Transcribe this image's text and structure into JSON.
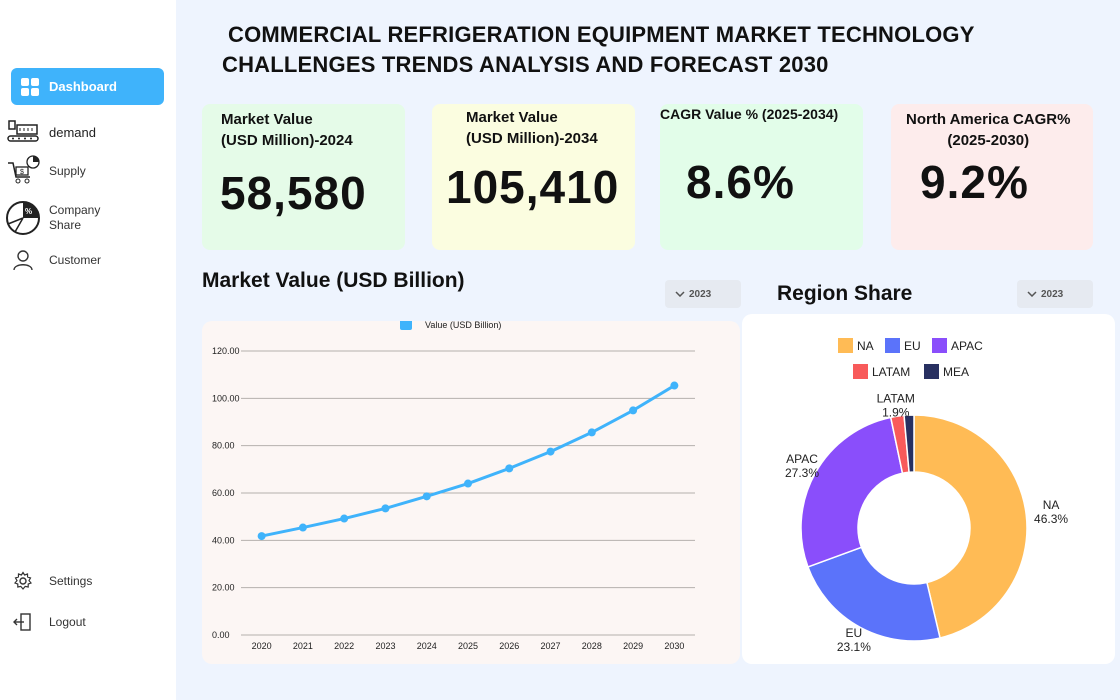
{
  "sidebar": {
    "items": [
      {
        "label": "Dashboard",
        "icon": "dashboard-icon"
      },
      {
        "label": "demand",
        "icon": "factory-icon"
      },
      {
        "label": "Supply",
        "icon": "supply-cart-icon"
      },
      {
        "label": "Company",
        "label2": "Share",
        "icon": "pie-percent-icon"
      },
      {
        "label": "Customer",
        "icon": "user-icon"
      }
    ],
    "settings_label": "Settings",
    "logout_label": "Logout"
  },
  "header": {
    "title_line1": "COMMERCIAL REFRIGERATION EQUIPMENT MARKET TECHNOLOGY",
    "title_line2": "CHALLENGES TRENDS ANALYSIS AND FORECAST 2030"
  },
  "cards": [
    {
      "label1": "Market Value",
      "label2": "(USD Million)-2024",
      "value": "58,580",
      "color": "#e5fbe8"
    },
    {
      "label1": "Market Value",
      "label2": "(USD Million)-2034",
      "value": "105,410",
      "color": "#fbfde0"
    },
    {
      "label1": "CAGR  Value % (2025-2034)",
      "label2": "",
      "value": "8.6%",
      "color": "#e2fde9"
    },
    {
      "label1": "North America CAGR%",
      "label2": "(2025-2030)",
      "value": "9.2%",
      "color": "#fdecec"
    }
  ],
  "line_section": {
    "title": "Market Value (USD Billion)",
    "dropdown": "2023"
  },
  "pie_section": {
    "title": "Region Share",
    "dropdown": "2023"
  },
  "chart_data": [
    {
      "type": "line",
      "title": "Market Value (USD Billion)",
      "x": [
        "2020",
        "2021",
        "2022",
        "2023",
        "2024",
        "2025",
        "2026",
        "2027",
        "2028",
        "2029",
        "2030"
      ],
      "series": [
        {
          "name": "Value (USD Billion)",
          "values": [
            41.8,
            45.4,
            49.2,
            53.5,
            58.6,
            64.0,
            70.4,
            77.5,
            85.6,
            94.9,
            105.4
          ],
          "color": "#3fb3fb"
        }
      ],
      "yticks": [
        "0.00",
        "20.00",
        "40.00",
        "60.00",
        "80.00",
        "100.00",
        "120.00"
      ],
      "ylim": [
        0,
        120
      ],
      "grid": true,
      "legend": "top"
    },
    {
      "type": "pie",
      "title": "Region Share",
      "donut": true,
      "slices": [
        {
          "label": "NA",
          "value": 46.3,
          "display": "46.3%",
          "color": "#ffbb55"
        },
        {
          "label": "EU",
          "value": 23.1,
          "display": "23.1%",
          "color": "#5b73fa"
        },
        {
          "label": "APAC",
          "value": 27.3,
          "display": "27.3%",
          "color": "#8a4efb"
        },
        {
          "label": "LATAM",
          "value": 1.9,
          "display": "1.9%",
          "color": "#f85a5a"
        },
        {
          "label": "MEA",
          "value": 1.4,
          "display": "",
          "color": "#283061"
        }
      ],
      "legend": "top"
    }
  ]
}
